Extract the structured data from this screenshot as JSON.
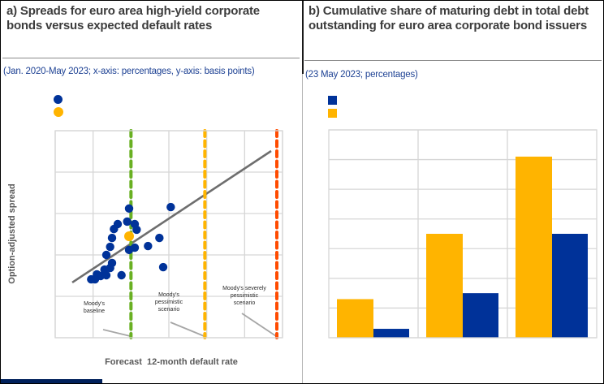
{
  "colors": {
    "blue": "#003299",
    "yellow": "#FFB400",
    "green": "#69B022",
    "red": "#FF4B00",
    "trend_line": "#6E6E6E",
    "leader_line": "#A6A6A6",
    "grid": "#D6D6D6",
    "title_text": "#3C3C3C",
    "subtitle_text": "#1E4294",
    "axis_label_text": "#595959",
    "bottom_bar": "#00205B"
  },
  "chart_data": [
    {
      "type": "scatter",
      "title": "a) Spreads for euro area high-yield corporate bonds versus expected default rates",
      "subtitle": "(Jan. 2020-May 2023; x-axis: percentages, y-axis: basis points)",
      "xlabel": "Forecast  12-month default rate",
      "ylabel": "Option-adjusted spread",
      "xlim": [
        0,
        12
      ],
      "ylim": [
        0,
        1000
      ],
      "x_grid_step": 2,
      "y_grid_step": 200,
      "grid": true,
      "legend": [
        {
          "marker": "circle",
          "color": "blue",
          "label": ""
        },
        {
          "marker": "circle",
          "color": "yellow",
          "label": ""
        }
      ],
      "points": [
        [
          3.9,
          624
        ],
        [
          6.1,
          631
        ],
        [
          3.3,
          549
        ],
        [
          3.8,
          561
        ],
        [
          4.2,
          549
        ],
        [
          3.1,
          525
        ],
        [
          4.3,
          522
        ],
        [
          3.0,
          482
        ],
        [
          5.5,
          482
        ],
        [
          2.9,
          439
        ],
        [
          4.9,
          443
        ],
        [
          3.9,
          424
        ],
        [
          4.2,
          435
        ],
        [
          2.7,
          400
        ],
        [
          3.0,
          361
        ],
        [
          2.6,
          329
        ],
        [
          2.9,
          337
        ],
        [
          5.7,
          341
        ],
        [
          2.2,
          306
        ],
        [
          2.4,
          298
        ],
        [
          2.7,
          302
        ],
        [
          3.5,
          302
        ],
        [
          2.1,
          282
        ],
        [
          1.9,
          282
        ]
      ],
      "highlight_point": [
        3.9,
        490
      ],
      "trend_line": {
        "x": [
          0.9,
          11.4
        ],
        "y": [
          267,
          902
        ]
      },
      "reference_lines": [
        {
          "x": 4.0,
          "color": "green",
          "label": "Moody's\nbaseline"
        },
        {
          "x": 7.9,
          "color": "yellow",
          "label": "Moody's\npessimistic\nscenario"
        },
        {
          "x": 11.7,
          "color": "red",
          "label": "Moody's severely\npessimistic\nscenario"
        }
      ]
    },
    {
      "type": "bar",
      "title": "b) Cumulative share of maturing debt in total debt outstanding for euro area corporate bond issuers",
      "subtitle": "(23 May 2023; percentages)",
      "categories": [
        "",
        "",
        ""
      ],
      "series": [
        {
          "color": "yellow",
          "label": "",
          "values": [
            13,
            35,
            61
          ]
        },
        {
          "color": "blue",
          "label": "",
          "values": [
            3,
            15,
            35
          ]
        }
      ],
      "ylim": [
        0,
        70
      ],
      "y_grid_step": 10,
      "grid": true,
      "legend": [
        {
          "marker": "square",
          "color": "blue",
          "label": ""
        },
        {
          "marker": "square",
          "color": "yellow",
          "label": ""
        }
      ]
    }
  ]
}
